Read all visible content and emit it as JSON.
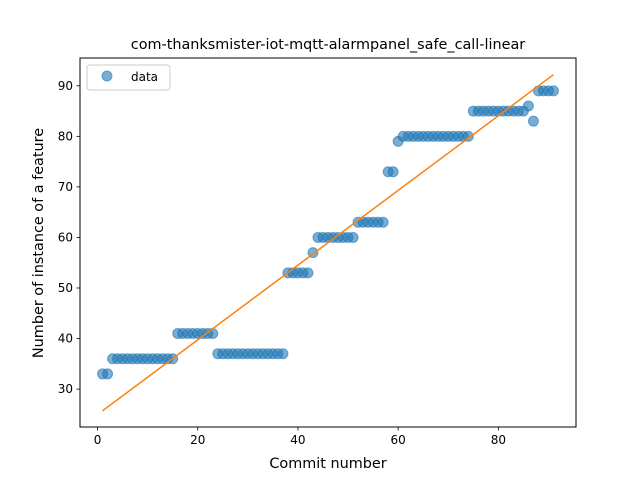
{
  "chart_data": {
    "type": "scatter",
    "title": "com-thanksmister-iot-mqtt-alarmpanel_safe_call-linear",
    "xlabel": "Commit number",
    "ylabel": "Number of instance of a feature",
    "xlim": [
      -3.5,
      95.5
    ],
    "ylim": [
      22.5,
      95.5
    ],
    "xticks": [
      0,
      20,
      40,
      60,
      80
    ],
    "yticks": [
      30,
      40,
      50,
      60,
      70,
      80,
      90
    ],
    "legend_position": "top-left",
    "series": [
      {
        "name": "data",
        "kind": "points",
        "color": "#1f77b4",
        "x": [
          1,
          2,
          3,
          4,
          5,
          6,
          7,
          8,
          9,
          10,
          11,
          12,
          13,
          14,
          15,
          16,
          17,
          18,
          19,
          20,
          21,
          22,
          23,
          24,
          25,
          26,
          27,
          28,
          29,
          30,
          31,
          32,
          33,
          34,
          35,
          36,
          37,
          38,
          39,
          40,
          41,
          42,
          43,
          44,
          45,
          46,
          47,
          48,
          49,
          50,
          51,
          52,
          53,
          54,
          55,
          56,
          57,
          58,
          59,
          60,
          61,
          62,
          63,
          64,
          65,
          66,
          67,
          68,
          69,
          70,
          71,
          72,
          73,
          74,
          75,
          76,
          77,
          78,
          79,
          80,
          81,
          82,
          83,
          84,
          85,
          86,
          87,
          88,
          89,
          90,
          91
        ],
        "y": [
          33,
          33,
          36,
          36,
          36,
          36,
          36,
          36,
          36,
          36,
          36,
          36,
          36,
          36,
          36,
          41,
          41,
          41,
          41,
          41,
          41,
          41,
          41,
          37,
          37,
          37,
          37,
          37,
          37,
          37,
          37,
          37,
          37,
          37,
          37,
          37,
          37,
          53,
          53,
          53,
          53,
          53,
          57,
          60,
          60,
          60,
          60,
          60,
          60,
          60,
          60,
          63,
          63,
          63,
          63,
          63,
          63,
          73,
          73,
          79,
          80,
          80,
          80,
          80,
          80,
          80,
          80,
          80,
          80,
          80,
          80,
          80,
          80,
          80,
          85,
          85,
          85,
          85,
          85,
          85,
          85,
          85,
          85,
          85,
          85,
          86,
          83,
          89,
          89,
          89,
          89
        ]
      },
      {
        "kind": "line",
        "color": "#ff7f0e",
        "x": [
          1,
          91
        ],
        "y": [
          25.7,
          92.2
        ]
      }
    ]
  }
}
